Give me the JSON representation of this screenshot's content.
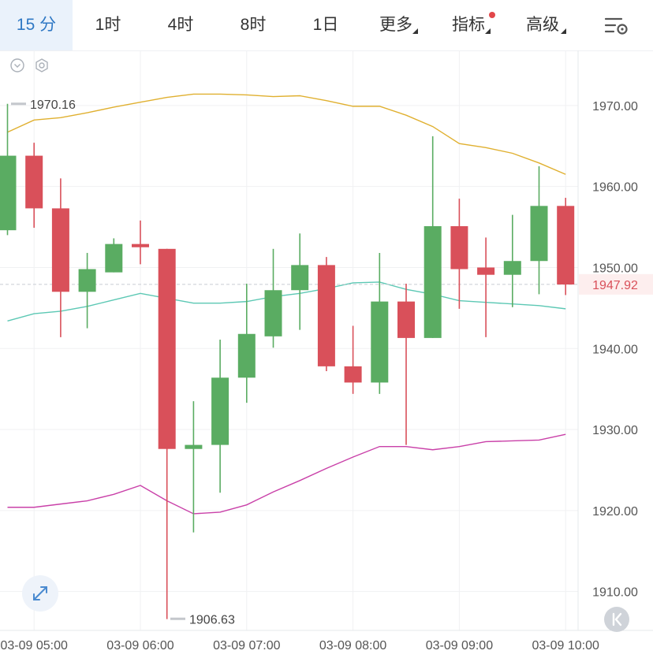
{
  "toolbar": {
    "tabs": [
      {
        "label": "15 分",
        "active": true
      },
      {
        "label": "1时"
      },
      {
        "label": "4时"
      },
      {
        "label": "8时"
      },
      {
        "label": "1日"
      },
      {
        "label": "更多",
        "dropdown": true
      },
      {
        "label": "指标",
        "dropdown": true,
        "badge": true
      },
      {
        "label": "高级",
        "dropdown": true
      }
    ],
    "settings_icon": "chart-settings-icon"
  },
  "chart_data": {
    "type": "candlestick",
    "x": [
      "03-09 04:45",
      "03-09 05:00",
      "03-09 05:15",
      "03-09 05:30",
      "03-09 05:45",
      "03-09 06:00",
      "03-09 06:15",
      "03-09 06:30",
      "03-09 06:45",
      "03-09 07:00",
      "03-09 07:15",
      "03-09 07:30",
      "03-09 07:45",
      "03-09 08:00",
      "03-09 08:15",
      "03-09 08:30",
      "03-09 08:45",
      "03-09 09:00",
      "03-09 09:15",
      "03-09 09:30",
      "03-09 09:45",
      "03-09 10:00"
    ],
    "ohlc": [
      [
        1954.6,
        1970.2,
        1954.0,
        1963.8
      ],
      [
        1963.8,
        1965.4,
        1954.9,
        1957.3
      ],
      [
        1957.3,
        1961.0,
        1941.4,
        1947.0
      ],
      [
        1947.0,
        1951.8,
        1942.5,
        1949.8
      ],
      [
        1949.4,
        1953.6,
        1949.4,
        1952.9
      ],
      [
        1952.9,
        1955.8,
        1950.4,
        1952.5
      ],
      [
        1952.3,
        1952.3,
        1906.6,
        1927.6
      ],
      [
        1927.6,
        1933.5,
        1917.3,
        1928.1
      ],
      [
        1928.1,
        1941.1,
        1922.2,
        1936.4
      ],
      [
        1936.4,
        1948.0,
        1933.3,
        1941.8
      ],
      [
        1941.5,
        1952.3,
        1940.1,
        1947.2
      ],
      [
        1947.2,
        1954.2,
        1942.3,
        1950.3
      ],
      [
        1950.3,
        1951.3,
        1937.2,
        1937.8
      ],
      [
        1937.8,
        1942.8,
        1934.4,
        1935.8
      ],
      [
        1935.8,
        1951.8,
        1934.4,
        1945.8
      ],
      [
        1945.8,
        1948.0,
        1928.1,
        1941.3
      ],
      [
        1941.3,
        1966.2,
        1941.3,
        1955.1
      ],
      [
        1955.1,
        1958.5,
        1944.9,
        1949.8
      ],
      [
        1950.0,
        1953.7,
        1941.4,
        1949.1
      ],
      [
        1949.1,
        1956.5,
        1945.1,
        1950.8
      ],
      [
        1950.8,
        1962.5,
        1946.7,
        1957.6
      ],
      [
        1957.6,
        1958.6,
        1946.6,
        1947.9
      ]
    ],
    "upper_band": [
      1966.7,
      1968.2,
      1968.5,
      1969.1,
      1969.8,
      1970.4,
      1971.0,
      1971.4,
      1971.4,
      1971.3,
      1971.1,
      1971.2,
      1970.6,
      1969.9,
      1969.9,
      1968.8,
      1967.4,
      1965.3,
      1964.8,
      1964.1,
      1962.9,
      1961.5
    ],
    "middle_band": [
      1943.4,
      1944.3,
      1944.6,
      1945.2,
      1946.0,
      1946.8,
      1946.2,
      1945.6,
      1945.6,
      1945.8,
      1946.4,
      1946.8,
      1947.4,
      1948.1,
      1948.2,
      1947.3,
      1946.7,
      1945.9,
      1945.7,
      1945.5,
      1945.3,
      1944.9
    ],
    "lower_band": [
      1920.4,
      1920.4,
      1920.8,
      1921.2,
      1922.0,
      1923.1,
      1921.2,
      1919.6,
      1919.8,
      1920.7,
      1922.3,
      1923.7,
      1925.2,
      1926.6,
      1927.9,
      1927.9,
      1927.5,
      1927.9,
      1928.5,
      1928.6,
      1928.7,
      1929.4
    ],
    "y_ticks": [
      "1970.00",
      "1960.00",
      "1950.00",
      "1940.00",
      "1930.00",
      "1920.00",
      "1910.00"
    ],
    "y_tick_values": [
      1970,
      1960,
      1950,
      1940,
      1930,
      1920,
      1910
    ],
    "x_tick_labels": [
      "03-09 05:00",
      "03-09 06:00",
      "03-09 07:00",
      "03-09 08:00",
      "03-09 09:00",
      "03-09 10:00"
    ],
    "ylim": [
      1905.2,
      1976.6
    ],
    "high_label": "1970.16",
    "low_label": "1906.63",
    "last_price": "1947.92",
    "last_price_value": 1947.92,
    "colors": {
      "up": "#5aac62",
      "down": "#d9505a",
      "upper_band": "#e0b030",
      "middle_band": "#5cc8b4",
      "lower_band": "#c940a8",
      "grid": "#f0f1f3",
      "last_price": "#d9505a"
    }
  }
}
